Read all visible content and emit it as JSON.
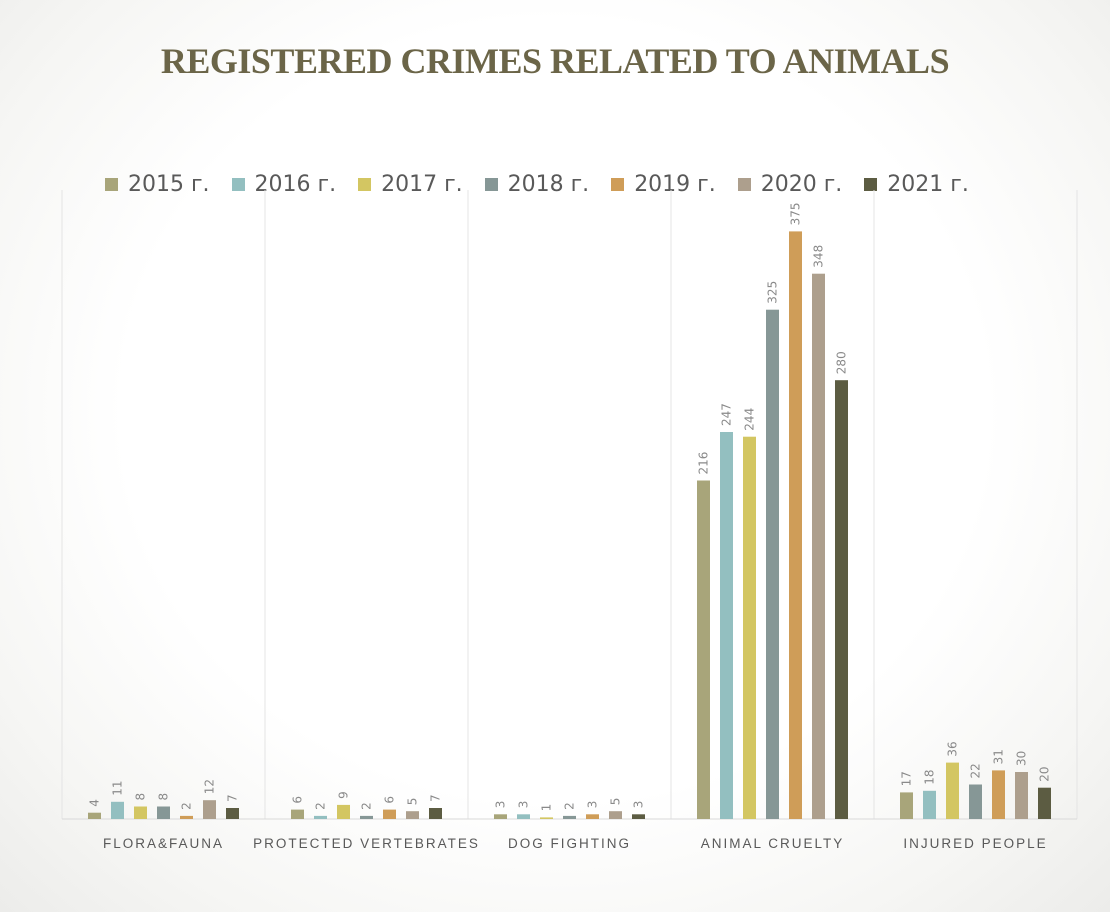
{
  "chart_data": {
    "type": "bar",
    "title": "REGISTERED CRIMES RELATED TO ANIMALS",
    "categories": [
      "FLORA&FAUNA",
      "PROTECTED VERTEBRATES",
      "DOG FIGHTING",
      "ANIMAL CRUELTY",
      "INJURED PEOPLE"
    ],
    "series": [
      {
        "name": "2015 г.",
        "color": "#a8a57a",
        "values": [
          4,
          6,
          3,
          216,
          17
        ]
      },
      {
        "name": "2016 г.",
        "color": "#93bfc0",
        "values": [
          11,
          2,
          3,
          247,
          18
        ]
      },
      {
        "name": "2017 г.",
        "color": "#d3c662",
        "values": [
          8,
          9,
          1,
          244,
          36
        ]
      },
      {
        "name": "2018 г.",
        "color": "#869796",
        "values": [
          8,
          2,
          2,
          325,
          22
        ]
      },
      {
        "name": "2019 г.",
        "color": "#cf9d58",
        "values": [
          2,
          6,
          3,
          375,
          31
        ]
      },
      {
        "name": "2020 г.",
        "color": "#ad9f8d",
        "values": [
          12,
          5,
          5,
          348,
          30
        ]
      },
      {
        "name": "2021 г.",
        "color": "#5c5c42",
        "values": [
          7,
          7,
          3,
          280,
          20
        ]
      }
    ],
    "ylim": [
      0,
      400
    ],
    "legend_position": "top",
    "grid": "vertical category separators",
    "data_labels": "rotated, above bars"
  }
}
